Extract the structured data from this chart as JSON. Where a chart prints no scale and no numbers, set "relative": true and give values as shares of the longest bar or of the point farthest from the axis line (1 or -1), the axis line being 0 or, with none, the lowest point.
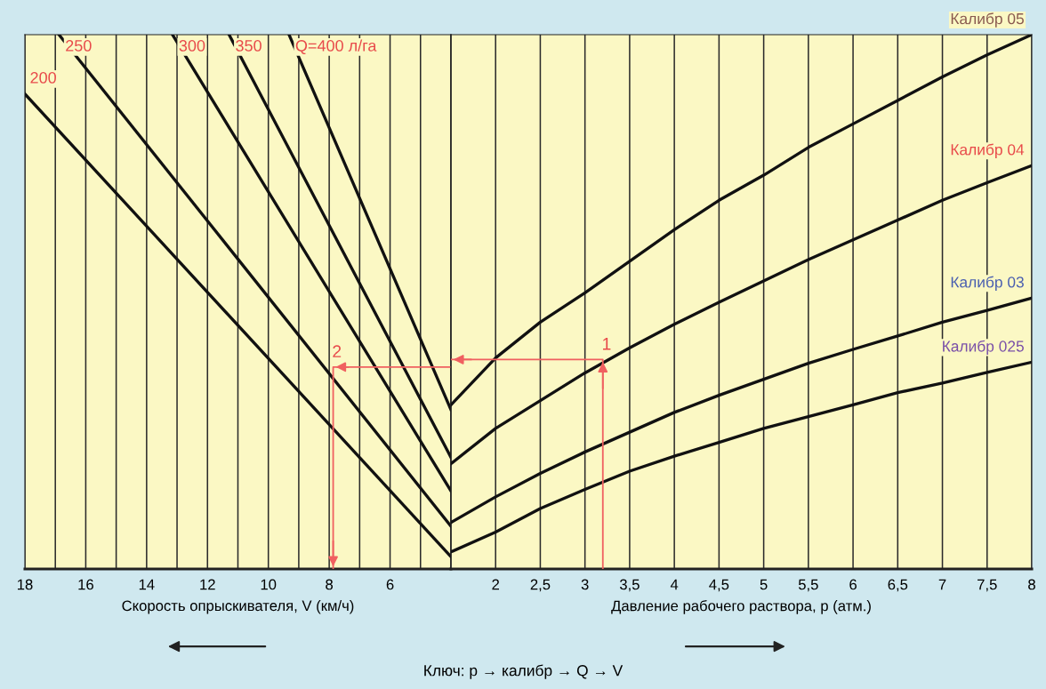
{
  "chart_data": [
    {
      "type": "line",
      "relative": true,
      "xlabel": "Скорость опрыскивателя, V (км/ч)",
      "xlim": [
        18,
        4
      ],
      "xticks": [
        18,
        {
          "value": 17,
          "label": null
        },
        16,
        {
          "value": 15,
          "label": null
        },
        14,
        {
          "value": 13,
          "label": null
        },
        12,
        {
          "value": 11,
          "label": null
        },
        10,
        {
          "value": 9,
          "label": null
        },
        8,
        {
          "value": 7,
          "label": null
        },
        6,
        {
          "value": 5,
          "label": null
        },
        {
          "value": 4,
          "label": null
        }
      ],
      "grid": "x",
      "tick_labels": "x",
      "legend": false,
      "series": [
        {
          "name": "200",
          "color": "#111111",
          "x": [
            18,
            4
          ],
          "values": [
            0.889,
            0.023
          ]
        },
        {
          "name": "250",
          "color": "#111111",
          "x": [
            16.88,
            4
          ],
          "values": [
            1.0,
            0.08
          ]
        },
        {
          "name": "300",
          "color": "#111111",
          "x": [
            13.15,
            4
          ],
          "values": [
            1.0,
            0.146
          ]
        },
        {
          "name": "350",
          "color": "#111111",
          "x": [
            11.29,
            4
          ],
          "values": [
            1.0,
            0.209
          ]
        },
        {
          "name": "Q=400 л/га",
          "color": "#111111",
          "x": [
            9.32,
            4
          ],
          "values": [
            1.0,
            0.298
          ]
        },
        {
          "color": "#f06060",
          "x": [
            4,
            7.87,
            7.87
          ],
          "values": [
            0.378,
            0.378,
            0
          ]
        }
      ],
      "annotations": [
        {
          "text": "2",
          "x": 7.87,
          "y": 0.378
        },
        "Ключ: p → калибр → Q → V"
      ]
    },
    {
      "type": "line",
      "relative": true,
      "xlabel": "Давление рабочего раствора, p (атм.)",
      "xlim": [
        1.5,
        8
      ],
      "xticks": [
        {
          "value": 1.5,
          "label": null
        },
        2,
        {
          "value": 2.5,
          "label": "2,5"
        },
        3,
        {
          "value": 3.5,
          "label": "3,5"
        },
        4,
        {
          "value": 4.5,
          "label": "4,5"
        },
        5,
        {
          "value": 5.5,
          "label": "5,5"
        },
        6,
        {
          "value": 6.5,
          "label": "6,5"
        },
        7,
        {
          "value": 7.5,
          "label": "7,5"
        },
        8
      ],
      "x": [
        1.5,
        2,
        2.5,
        3,
        3.5,
        4,
        4.5,
        5,
        5.5,
        6,
        6.5,
        7,
        7.5,
        8
      ],
      "grid": "x",
      "tick_labels": "x",
      "legend": false,
      "series": [
        {
          "name": "Калибр 05",
          "color": "#111111",
          "values": [
            0.307,
            0.395,
            0.462,
            0.517,
            0.576,
            0.635,
            0.69,
            0.737,
            0.789,
            0.833,
            0.877,
            0.921,
            0.962,
            1.0
          ]
        },
        {
          "name": "Калибр 04",
          "color": "#111111",
          "values": [
            0.197,
            0.263,
            0.315,
            0.367,
            0.414,
            0.458,
            0.499,
            0.539,
            0.579,
            0.616,
            0.653,
            0.69,
            0.723,
            0.755
          ]
        },
        {
          "name": "Калибр 03",
          "color": "#111111",
          "values": [
            0.087,
            0.135,
            0.179,
            0.219,
            0.256,
            0.293,
            0.325,
            0.355,
            0.385,
            0.411,
            0.436,
            0.462,
            0.484,
            0.507
          ]
        },
        {
          "name": "Калибр 025",
          "color": "#111111",
          "values": [
            0.032,
            0.069,
            0.113,
            0.149,
            0.183,
            0.211,
            0.237,
            0.263,
            0.285,
            0.307,
            0.33,
            0.348,
            0.368,
            0.387
          ]
        },
        {
          "color": "#f06060",
          "x": [
            3.2,
            3.2,
            1.5
          ],
          "values": [
            0,
            0.392,
            0.392
          ]
        }
      ],
      "annotations": [
        {
          "text": "1",
          "x": 3.2,
          "y": 0.392
        }
      ]
    }
  ]
}
